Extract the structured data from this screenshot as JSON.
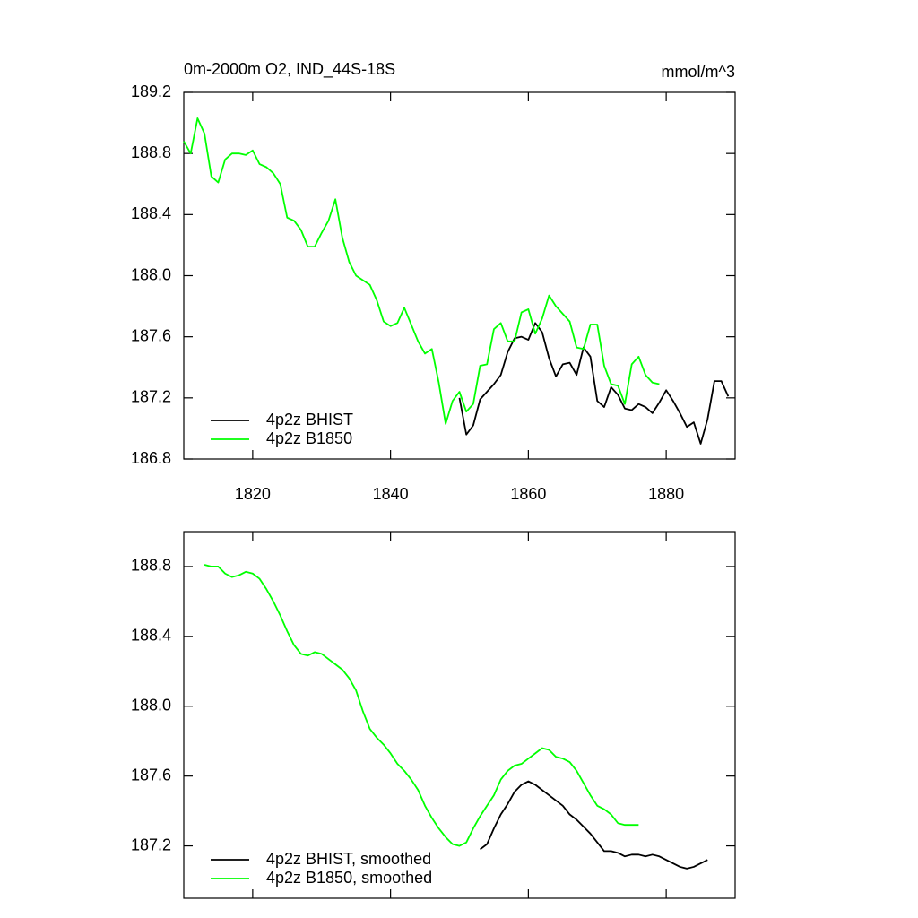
{
  "chart_data": [
    {
      "type": "line",
      "title": "0m-2000m O2, IND_44S-18S",
      "units": "mmol/m^3",
      "x": [
        1810,
        1811,
        1812,
        1813,
        1814,
        1815,
        1816,
        1817,
        1818,
        1819,
        1820,
        1821,
        1822,
        1823,
        1824,
        1825,
        1826,
        1827,
        1828,
        1829,
        1830,
        1831,
        1832,
        1833,
        1834,
        1835,
        1836,
        1837,
        1838,
        1839,
        1840,
        1841,
        1842,
        1843,
        1844,
        1845,
        1846,
        1847,
        1848,
        1849,
        1850,
        1851,
        1852,
        1853,
        1854,
        1855,
        1856,
        1857,
        1858,
        1859,
        1860,
        1861,
        1862,
        1863,
        1864,
        1865,
        1866,
        1867,
        1868,
        1869,
        1870,
        1871,
        1872,
        1873,
        1874,
        1875,
        1876,
        1877,
        1878,
        1879,
        1880,
        1881,
        1882,
        1883,
        1884,
        1885,
        1886,
        1887,
        1888,
        1889
      ],
      "series": [
        {
          "name": "4p2z BHIST",
          "color": "#000000",
          "values": [
            null,
            null,
            null,
            null,
            null,
            null,
            null,
            null,
            null,
            null,
            null,
            null,
            null,
            null,
            null,
            null,
            null,
            null,
            null,
            null,
            null,
            null,
            null,
            null,
            null,
            null,
            null,
            null,
            null,
            null,
            null,
            null,
            null,
            null,
            null,
            null,
            null,
            null,
            null,
            null,
            187.2,
            186.96,
            187.02,
            187.19,
            187.24,
            187.29,
            187.35,
            187.5,
            187.59,
            187.6,
            187.58,
            187.69,
            187.63,
            187.46,
            187.34,
            187.42,
            187.43,
            187.35,
            187.53,
            187.47,
            187.18,
            187.14,
            187.27,
            187.22,
            187.13,
            187.12,
            187.16,
            187.14,
            187.1,
            187.17,
            187.25,
            187.18,
            187.1,
            187.01,
            187.04,
            186.9,
            187.06,
            187.31,
            187.31,
            187.21
          ]
        },
        {
          "name": "4p2z B1850",
          "color": "#00ff00",
          "values": [
            188.88,
            188.8,
            189.03,
            188.93,
            188.65,
            188.61,
            188.76,
            188.8,
            188.8,
            188.79,
            188.82,
            188.73,
            188.71,
            188.67,
            188.6,
            188.38,
            188.36,
            188.3,
            188.19,
            188.19,
            188.28,
            188.36,
            188.5,
            188.25,
            188.09,
            188.0,
            187.97,
            187.94,
            187.84,
            187.7,
            187.67,
            187.69,
            187.79,
            187.68,
            187.57,
            187.49,
            187.52,
            187.3,
            187.03,
            187.18,
            187.24,
            187.11,
            187.16,
            187.41,
            187.42,
            187.65,
            187.69,
            187.57,
            187.57,
            187.76,
            187.78,
            187.62,
            187.72,
            187.87,
            187.8,
            187.75,
            187.7,
            187.53,
            187.52,
            187.68,
            187.68,
            187.41,
            187.29,
            187.28,
            187.16,
            187.42,
            187.47,
            187.35,
            187.3,
            187.29,
            null,
            null,
            null,
            null,
            null,
            null,
            null,
            null,
            null,
            null
          ]
        }
      ],
      "xlim": [
        1810,
        1890
      ],
      "xticks": [
        1820,
        1840,
        1860,
        1880
      ],
      "ylim": [
        186.8,
        189.2
      ],
      "yticks": [
        186.8,
        187.2,
        187.6,
        {
          "value": 188,
          "label": "188.0"
        },
        188.4,
        188.8,
        189.2
      ],
      "legend": "lower left"
    },
    {
      "type": "line",
      "x": [
        1810,
        1811,
        1812,
        1813,
        1814,
        1815,
        1816,
        1817,
        1818,
        1819,
        1820,
        1821,
        1822,
        1823,
        1824,
        1825,
        1826,
        1827,
        1828,
        1829,
        1830,
        1831,
        1832,
        1833,
        1834,
        1835,
        1836,
        1837,
        1838,
        1839,
        1840,
        1841,
        1842,
        1843,
        1844,
        1845,
        1846,
        1847,
        1848,
        1849,
        1850,
        1851,
        1852,
        1853,
        1854,
        1855,
        1856,
        1857,
        1858,
        1859,
        1860,
        1861,
        1862,
        1863,
        1864,
        1865,
        1866,
        1867,
        1868,
        1869,
        1870,
        1871,
        1872,
        1873,
        1874,
        1875,
        1876,
        1877,
        1878,
        1879,
        1880,
        1881,
        1882,
        1883,
        1884,
        1885,
        1886,
        1887,
        1888,
        1889
      ],
      "series": [
        {
          "name": "4p2z BHIST, smoothed",
          "color": "#000000",
          "values": [
            null,
            null,
            null,
            null,
            null,
            null,
            null,
            null,
            null,
            null,
            null,
            null,
            null,
            null,
            null,
            null,
            null,
            null,
            null,
            null,
            null,
            null,
            null,
            null,
            null,
            null,
            null,
            null,
            null,
            null,
            null,
            null,
            null,
            null,
            null,
            null,
            null,
            null,
            null,
            null,
            null,
            null,
            null,
            187.18,
            187.21,
            187.3,
            187.38,
            187.44,
            187.51,
            187.55,
            187.57,
            187.55,
            187.52,
            187.49,
            187.46,
            187.43,
            187.38,
            187.35,
            187.31,
            187.27,
            187.22,
            187.17,
            187.17,
            187.16,
            187.14,
            187.15,
            187.15,
            187.14,
            187.15,
            187.14,
            187.12,
            187.1,
            187.08,
            187.07,
            187.08,
            187.1,
            187.12,
            null,
            null,
            null
          ]
        },
        {
          "name": "4p2z B1850, smoothed",
          "color": "#00ff00",
          "values": [
            null,
            null,
            null,
            188.81,
            188.8,
            188.8,
            188.76,
            188.74,
            188.75,
            188.77,
            188.76,
            188.73,
            188.67,
            188.6,
            188.52,
            188.43,
            188.35,
            188.3,
            188.29,
            188.31,
            188.3,
            188.27,
            188.24,
            188.21,
            188.16,
            188.09,
            187.97,
            187.87,
            187.82,
            187.78,
            187.73,
            187.67,
            187.63,
            187.58,
            187.52,
            187.43,
            187.36,
            187.3,
            187.25,
            187.21,
            187.2,
            187.22,
            187.3,
            187.37,
            187.43,
            187.49,
            187.58,
            187.63,
            187.66,
            187.67,
            187.7,
            187.73,
            187.76,
            187.75,
            187.71,
            187.7,
            187.68,
            187.63,
            187.56,
            187.49,
            187.43,
            187.41,
            187.38,
            187.33,
            187.32,
            187.32,
            187.32,
            null,
            null,
            null,
            null,
            null,
            null,
            null,
            null,
            null,
            null,
            null,
            null,
            null
          ]
        }
      ],
      "xlim": [
        1810,
        1890
      ],
      "xticks": [
        1820,
        1840,
        1860,
        1880
      ],
      "xtick_labels": false,
      "ylim": [
        186.9,
        189.0
      ],
      "yticks": [
        187.2,
        187.6,
        {
          "value": 188,
          "label": "188.0"
        },
        188.4,
        188.8
      ],
      "legend": "lower left"
    }
  ]
}
